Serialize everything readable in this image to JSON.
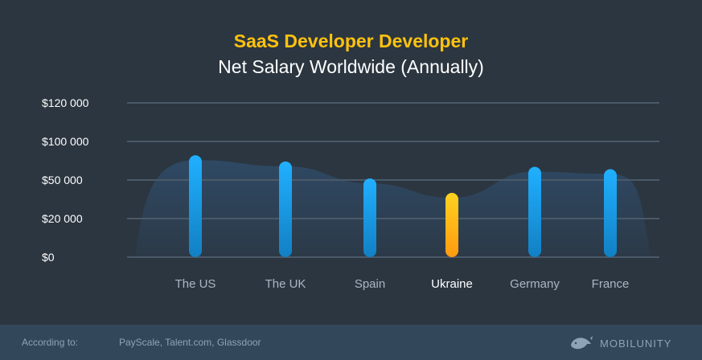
{
  "title": "SaaS Developer Developer",
  "subtitle": "Net Salary Worldwide (Annually)",
  "colors": {
    "background": "#2c3640",
    "title": "#ffc20e",
    "bar": "#1a9be6",
    "highlight": "#ffb515",
    "grid": "#4a5968",
    "area": "#2f4660",
    "tick_text": "#ffffff",
    "category_text": "#aab6c2",
    "highlight_text": "#ffffff"
  },
  "chart_data": {
    "type": "bar",
    "categories": [
      "The US",
      "The UK",
      "Spain",
      "Ukraine",
      "Germany",
      "France"
    ],
    "values": [
      82000,
      74000,
      52000,
      40000,
      67000,
      64000
    ],
    "highlight": "Ukraine",
    "y_ticks": [
      "$0",
      "$20 000",
      "$50 000",
      "$100 000",
      "$120 000"
    ],
    "y_tick_values": [
      0,
      20000,
      50000,
      100000,
      120000
    ],
    "grid": true,
    "background_area": true
  },
  "footer": {
    "label": "According to:",
    "sources": "PayScale, Talent.com, Glassdoor",
    "brand": "MOBILUNITY"
  }
}
